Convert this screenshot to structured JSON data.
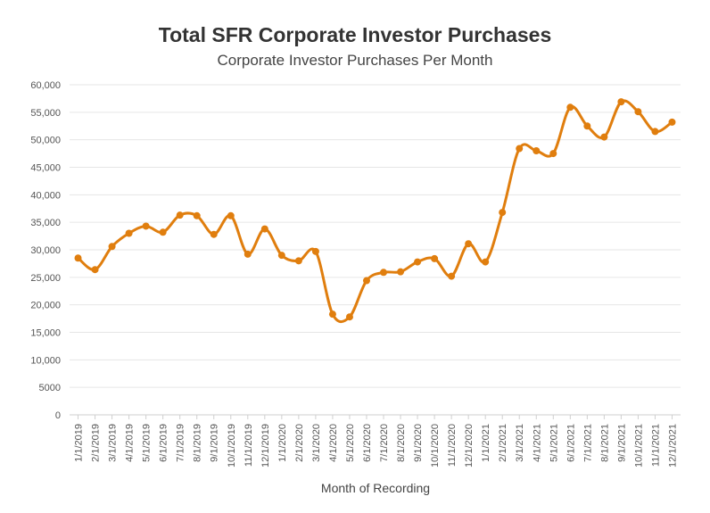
{
  "chart_data": {
    "type": "line",
    "title": "Total SFR Corporate Investor Purchases",
    "subtitle": "Corporate Investor Purchases Per Month",
    "xlabel": "Month of Recording",
    "ylabel": "",
    "ylim": [
      0,
      60000
    ],
    "yticks": [
      0,
      5000,
      10000,
      15000,
      20000,
      25000,
      30000,
      35000,
      40000,
      45000,
      50000,
      55000,
      60000
    ],
    "ytick_labels": [
      "0",
      "5000",
      "10,000",
      "15,000",
      "20,000",
      "25,000",
      "30,000",
      "35,000",
      "40,000",
      "45,000",
      "50,000",
      "55,000",
      "60,000"
    ],
    "grid": true,
    "legend": "none",
    "line_color": "#E07E0E",
    "categories": [
      "1/1/2019",
      "2/1/2019",
      "3/1/2019",
      "4/1/2019",
      "5/1/2019",
      "6/1/2019",
      "7/1/2019",
      "8/1/2019",
      "9/1/2019",
      "10/1/2019",
      "11/1/2019",
      "12/1/2019",
      "1/1/2020",
      "2/1/2020",
      "3/1/2020",
      "4/1/2020",
      "5/1/2020",
      "6/1/2020",
      "7/1/2020",
      "8/1/2020",
      "9/1/2020",
      "10/1/2020",
      "11/1/2020",
      "12/1/2020",
      "1/1/2021",
      "2/1/2021",
      "3/1/2021",
      "4/1/2021",
      "5/1/2021",
      "6/1/2021",
      "7/1/2021",
      "8/1/2021",
      "9/1/2021",
      "10/1/2021",
      "11/1/2021",
      "12/1/2021"
    ],
    "values": [
      28500,
      26400,
      30600,
      33000,
      34300,
      33200,
      36300,
      36200,
      32800,
      36200,
      29200,
      33800,
      29000,
      28000,
      29700,
      18300,
      17800,
      24400,
      25900,
      26000,
      27800,
      28400,
      25200,
      31100,
      27800,
      36800,
      48400,
      48000,
      47500,
      55900,
      52500,
      50500,
      56900,
      55100,
      51500,
      53200
    ]
  }
}
